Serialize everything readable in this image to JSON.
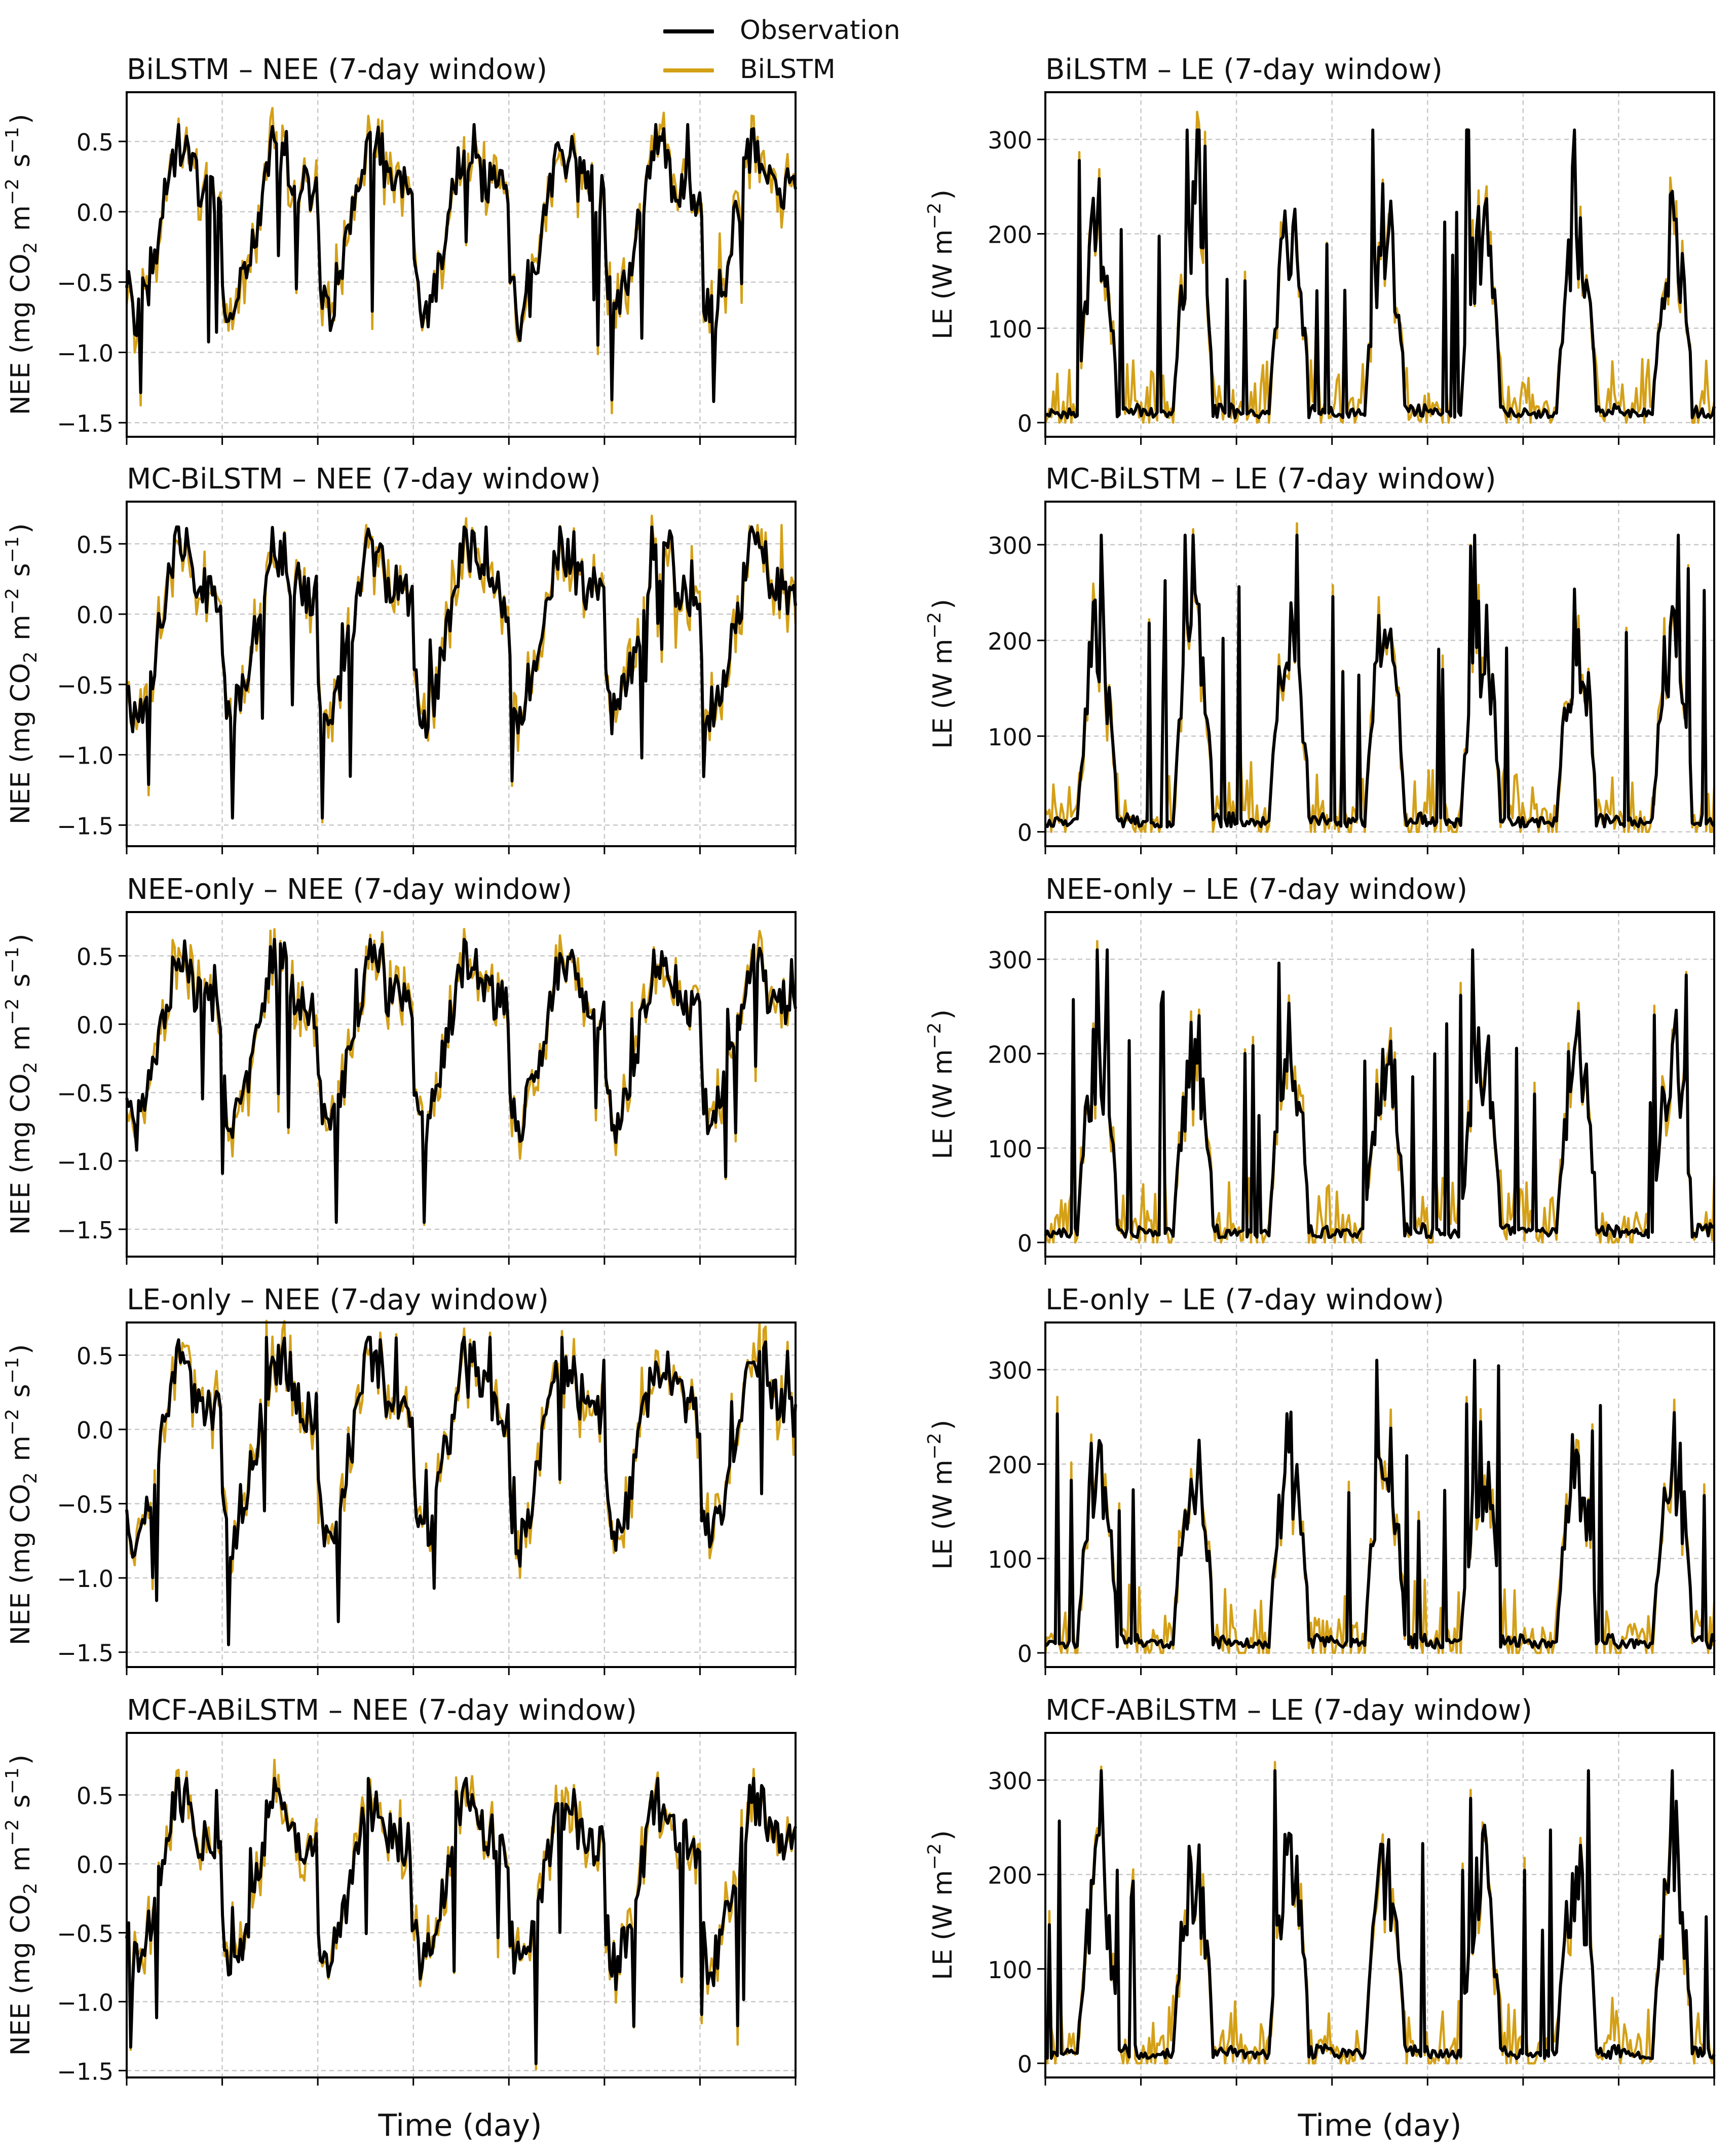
{
  "figure": {
    "xlabel": "Time (day)"
  },
  "legend": [
    {
      "label": "Observation",
      "color": "#000000"
    },
    {
      "label": "BiLSTM",
      "color": "#d4a017"
    }
  ],
  "colors": {
    "observation": "#000000",
    "prediction": "#d4a017",
    "grid": "#c8c8c8"
  },
  "chart_data": [
    {
      "type": "line",
      "variable": "NEE",
      "model": "BiLSTM",
      "title": "BiLSTM – NEE (7-day window)",
      "ylabel": "NEE (mg CO2 m^-2 s^-1)",
      "ylim": [
        -1.6,
        0.85
      ],
      "yticks": [
        -1.5,
        -1.0,
        -0.5,
        0.0,
        0.5
      ],
      "ytick_labels": [
        "−1.5",
        "−1.0",
        "−0.5",
        "0.0",
        "0.5"
      ],
      "x": [
        0,
        168
      ],
      "seed": 11
    },
    {
      "type": "line",
      "variable": "LE",
      "model": "BiLSTM",
      "title": "BiLSTM – LE (7-day window)",
      "ylabel": "LE (W m^-2)",
      "ylim": [
        -15,
        350
      ],
      "yticks": [
        0,
        100,
        200,
        300
      ],
      "ytick_labels": [
        "0",
        "100",
        "200",
        "300"
      ],
      "x": [
        0,
        168
      ],
      "seed": 21
    },
    {
      "type": "line",
      "variable": "NEE",
      "model": "MC-BiLSTM",
      "title": "MC-BiLSTM – NEE (7-day window)",
      "ylabel": "NEE (mg CO2 m^-2 s^-1)",
      "ylim": [
        -1.65,
        0.8
      ],
      "yticks": [
        -1.5,
        -1.0,
        -0.5,
        0.0,
        0.5
      ],
      "ytick_labels": [
        "−1.5",
        "−1.0",
        "−0.5",
        "0.0",
        "0.5"
      ],
      "x": [
        0,
        168
      ],
      "seed": 12
    },
    {
      "type": "line",
      "variable": "LE",
      "model": "MC-BiLSTM",
      "title": "MC-BiLSTM – LE (7-day window)",
      "ylabel": "LE (W m^-2)",
      "ylim": [
        -15,
        345
      ],
      "yticks": [
        0,
        100,
        200,
        300
      ],
      "ytick_labels": [
        "0",
        "100",
        "200",
        "300"
      ],
      "x": [
        0,
        168
      ],
      "seed": 22
    },
    {
      "type": "line",
      "variable": "NEE",
      "model": "NEE-only",
      "title": "NEE-only – NEE (7-day window)",
      "ylabel": "NEE (mg CO2 m^-2 s^-1)",
      "ylim": [
        -1.7,
        0.82
      ],
      "yticks": [
        -1.5,
        -1.0,
        -0.5,
        0.0,
        0.5
      ],
      "ytick_labels": [
        "−1.5",
        "−1.0",
        "−0.5",
        "0.0",
        "0.5"
      ],
      "x": [
        0,
        168
      ],
      "seed": 13
    },
    {
      "type": "line",
      "variable": "LE",
      "model": "NEE-only",
      "title": "NEE-only – LE (7-day window)",
      "ylabel": "LE (W m^-2)",
      "ylim": [
        -15,
        350
      ],
      "yticks": [
        0,
        100,
        200,
        300
      ],
      "ytick_labels": [
        "0",
        "100",
        "200",
        "300"
      ],
      "x": [
        0,
        168
      ],
      "seed": 23
    },
    {
      "type": "line",
      "variable": "NEE",
      "model": "LE-only",
      "title": "LE-only – NEE (7-day window)",
      "ylabel": "NEE (mg CO2 m^-2 s^-1)",
      "ylim": [
        -1.6,
        0.72
      ],
      "yticks": [
        -1.5,
        -1.0,
        -0.5,
        0.0,
        0.5
      ],
      "ytick_labels": [
        "−1.5",
        "−1.0",
        "−0.5",
        "0.0",
        "0.5"
      ],
      "x": [
        0,
        168
      ],
      "seed": 14
    },
    {
      "type": "line",
      "variable": "LE",
      "model": "LE-only",
      "title": "LE-only – LE (7-day window)",
      "ylabel": "LE (W m^-2)",
      "ylim": [
        -15,
        350
      ],
      "yticks": [
        0,
        100,
        200,
        300
      ],
      "ytick_labels": [
        "0",
        "100",
        "200",
        "300"
      ],
      "x": [
        0,
        168
      ],
      "seed": 24
    },
    {
      "type": "line",
      "variable": "NEE",
      "model": "MCF-ABiLSTM",
      "title": "MCF-ABiLSTM – NEE (7-day window)",
      "ylabel": "NEE (mg CO2 m^-2 s^-1)",
      "ylim": [
        -1.55,
        0.95
      ],
      "yticks": [
        -1.5,
        -1.0,
        -0.5,
        0.0,
        0.5
      ],
      "ytick_labels": [
        "−1.5",
        "−1.0",
        "−0.5",
        "0.0",
        "0.5"
      ],
      "x": [
        0,
        168
      ],
      "seed": 15
    },
    {
      "type": "line",
      "variable": "LE",
      "model": "MCF-ABiLSTM",
      "title": "MCF-ABiLSTM – LE (7-day window)",
      "ylabel": "LE (W m^-2)",
      "ylim": [
        -15,
        350
      ],
      "yticks": [
        0,
        100,
        200,
        300
      ],
      "ytick_labels": [
        "0",
        "100",
        "200",
        "300"
      ],
      "x": [
        0,
        168
      ],
      "seed": 25
    }
  ]
}
